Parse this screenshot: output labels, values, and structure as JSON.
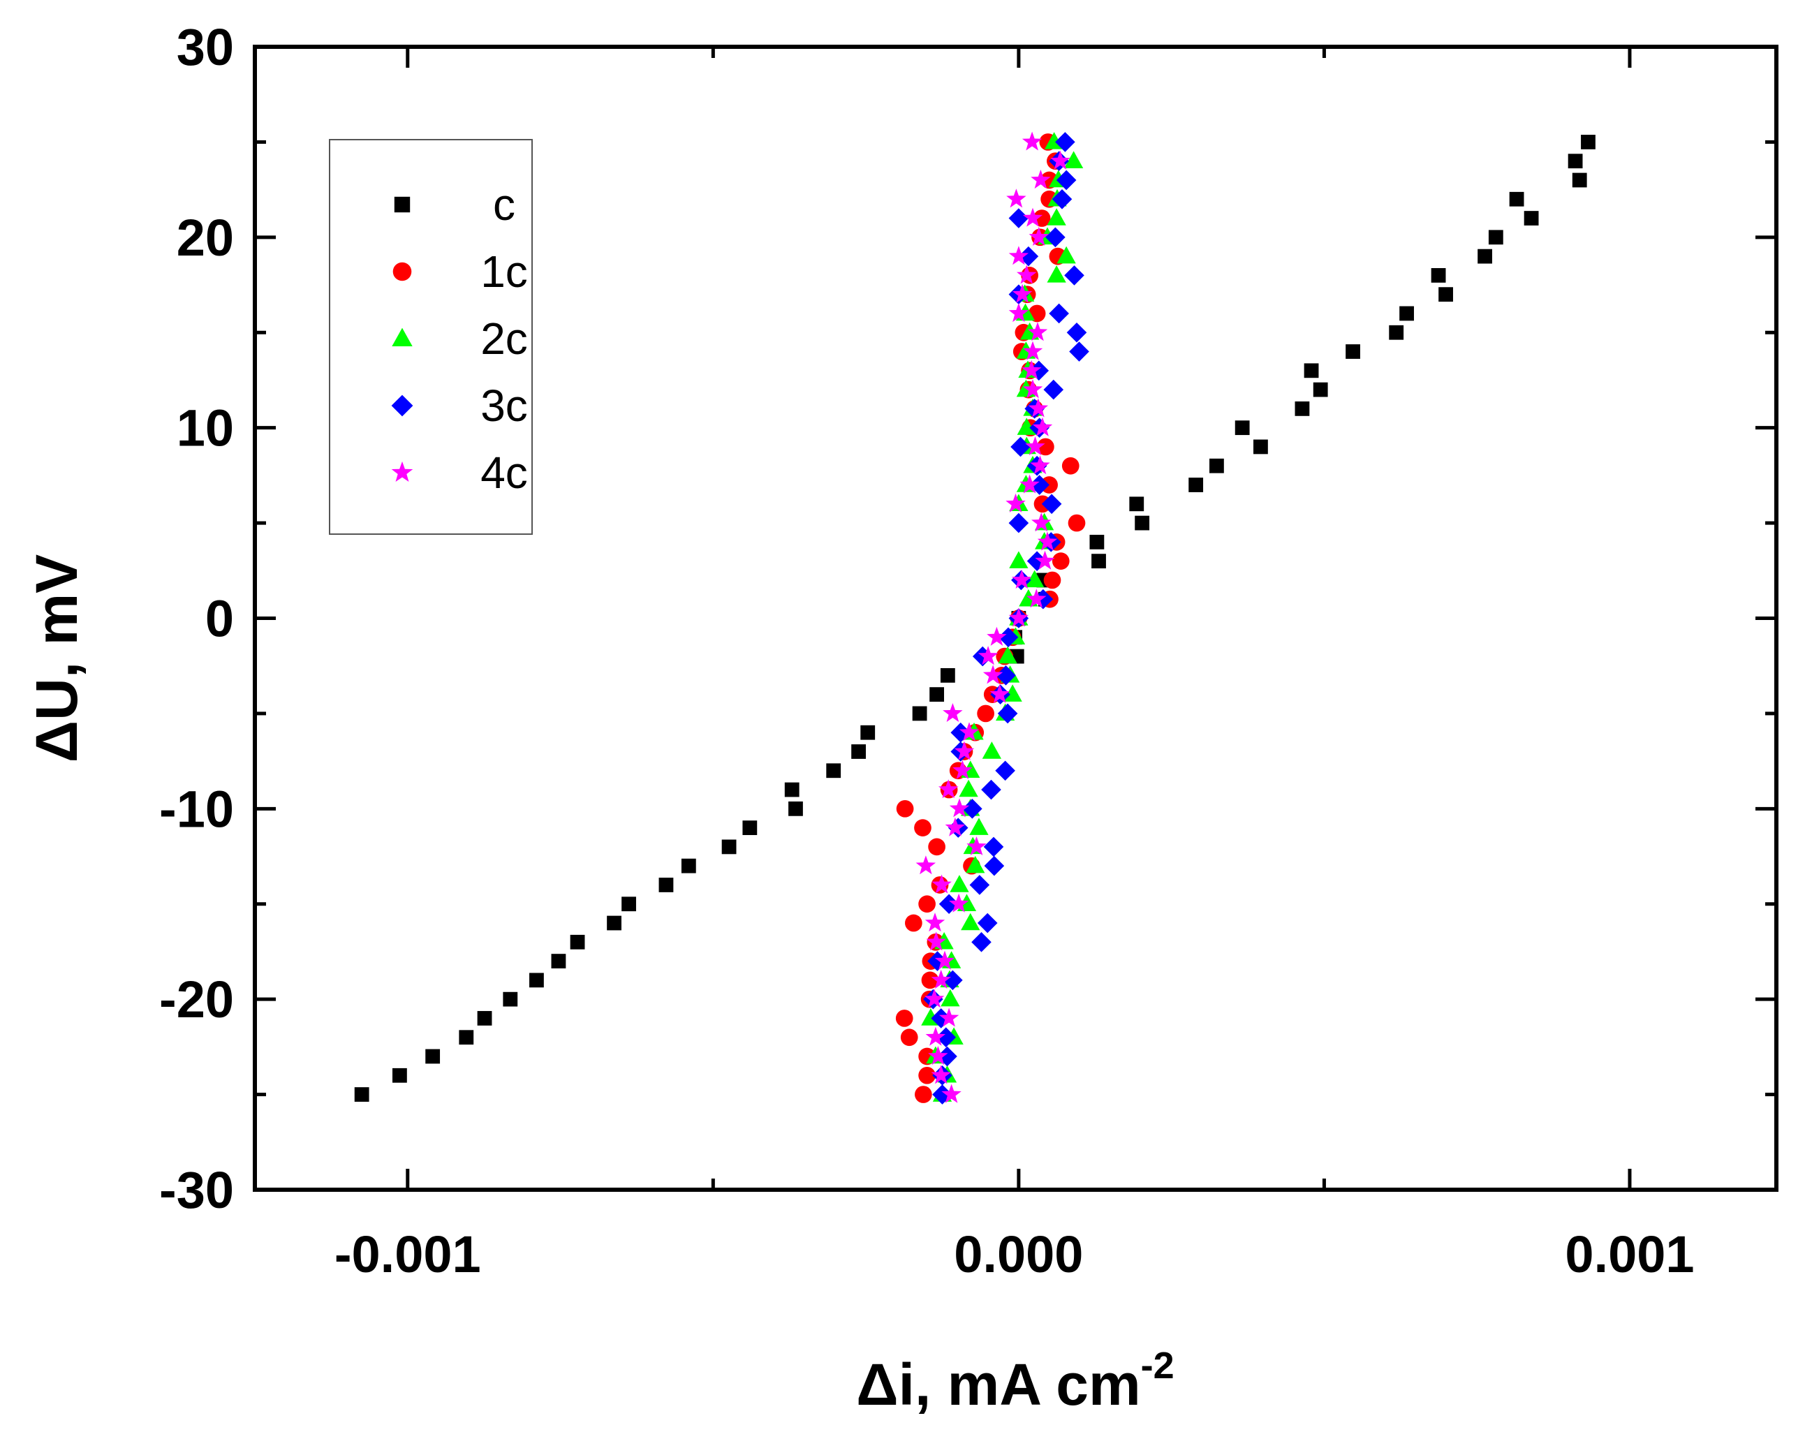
{
  "chart_data": {
    "type": "scatter",
    "title": "",
    "xlabel": "Δi, mA cm",
    "xlabel_sup": "-2",
    "ylabel": "ΔU, mV",
    "xlim": [
      -0.00125,
      0.00124
    ],
    "ylim": [
      -30,
      30
    ],
    "xticks": [
      {
        "value": -0.001,
        "label": "-0.001"
      },
      {
        "value": 0.0,
        "label": "0.000"
      },
      {
        "value": 0.001,
        "label": "0.001"
      }
    ],
    "xminor": [
      -0.0005,
      0.0005
    ],
    "yticks": [
      {
        "value": -30,
        "label": "-30"
      },
      {
        "value": -20,
        "label": "-20"
      },
      {
        "value": -10,
        "label": "-10"
      },
      {
        "value": 0,
        "label": "0"
      },
      {
        "value": 10,
        "label": "10"
      },
      {
        "value": 20,
        "label": "20"
      },
      {
        "value": 30,
        "label": "30"
      }
    ],
    "yminor": [
      -25,
      -15,
      -5,
      5,
      15,
      25
    ],
    "legend_position": "top-left",
    "series": [
      {
        "name": "c",
        "marker": "square",
        "color": "#000000",
        "points": [
          [
            -0.001075,
            -25
          ],
          [
            -0.001013,
            -24
          ],
          [
            -0.000959,
            -23
          ],
          [
            -0.000904,
            -22
          ],
          [
            -0.000874,
            -21
          ],
          [
            -0.000832,
            -20
          ],
          [
            -0.000789,
            -19
          ],
          [
            -0.000753,
            -18
          ],
          [
            -0.000722,
            -17
          ],
          [
            -0.000662,
            -16
          ],
          [
            -0.000638,
            -15
          ],
          [
            -0.000577,
            -14
          ],
          [
            -0.00054,
            -13
          ],
          [
            -0.000474,
            -12
          ],
          [
            -0.00044,
            -11
          ],
          [
            -0.000365,
            -10
          ],
          [
            -0.000371,
            -9
          ],
          [
            -0.000303,
            -8
          ],
          [
            -0.000262,
            -7
          ],
          [
            -0.000247,
            -6
          ],
          [
            -0.000162,
            -5
          ],
          [
            -0.000134,
            -4
          ],
          [
            -0.000116,
            -3
          ],
          [
            -3e-06,
            -2
          ],
          [
            -6e-06,
            -1
          ],
          [
            0.0,
            0
          ],
          [
            4.4e-05,
            1
          ],
          [
            4.1e-05,
            2
          ],
          [
            0.000131,
            3
          ],
          [
            0.000128,
            4
          ],
          [
            0.000202,
            5
          ],
          [
            0.000193,
            6
          ],
          [
            0.00029,
            7
          ],
          [
            0.000324,
            8
          ],
          [
            0.000396,
            9
          ],
          [
            0.000366,
            10
          ],
          [
            0.000464,
            11
          ],
          [
            0.000494,
            12
          ],
          [
            0.000479,
            13
          ],
          [
            0.000547,
            14
          ],
          [
            0.000618,
            15
          ],
          [
            0.000635,
            16
          ],
          [
            0.000699,
            17
          ],
          [
            0.000687,
            18
          ],
          [
            0.000763,
            19
          ],
          [
            0.000781,
            20
          ],
          [
            0.000839,
            21
          ],
          [
            0.000815,
            22
          ],
          [
            0.000918,
            23
          ],
          [
            0.000911,
            24
          ],
          [
            0.000932,
            25
          ]
        ]
      },
      {
        "name": "1c",
        "marker": "circle",
        "color": "#ff0000",
        "points": [
          [
            -0.000156,
            -25
          ],
          [
            -0.00015,
            -24
          ],
          [
            -0.00015,
            -23
          ],
          [
            -0.000179,
            -22
          ],
          [
            -0.000187,
            -21
          ],
          [
            -0.000146,
            -20
          ],
          [
            -0.000145,
            -19
          ],
          [
            -0.000144,
            -18
          ],
          [
            -0.000136,
            -17
          ],
          [
            -0.000172,
            -16
          ],
          [
            -0.00015,
            -15
          ],
          [
            -0.000129,
            -14
          ],
          [
            -7.7e-05,
            -13
          ],
          [
            -0.000134,
            -12
          ],
          [
            -0.000157,
            -11
          ],
          [
            -0.000186,
            -10
          ],
          [
            -0.000114,
            -9
          ],
          [
            -9.9e-05,
            -8
          ],
          [
            -8.9e-05,
            -7
          ],
          [
            -7.1e-05,
            -6
          ],
          [
            -5.4e-05,
            -5
          ],
          [
            -4.3e-05,
            -4
          ],
          [
            -2.8e-05,
            -3
          ],
          [
            -2.3e-05,
            -2
          ],
          [
            -1e-05,
            -1
          ],
          [
            0.0,
            0
          ],
          [
            5.1e-05,
            1
          ],
          [
            5.5e-05,
            2
          ],
          [
            6.9e-05,
            3
          ],
          [
            6.2e-05,
            4
          ],
          [
            9.5e-05,
            5
          ],
          [
            3.9e-05,
            6
          ],
          [
            5e-05,
            7
          ],
          [
            8.5e-05,
            8
          ],
          [
            4.4e-05,
            9
          ],
          [
            1.9e-05,
            10
          ],
          [
            2.6e-05,
            11
          ],
          [
            1.6e-05,
            12
          ],
          [
            1.8e-05,
            13
          ],
          [
            5e-06,
            14
          ],
          [
            8e-06,
            15
          ],
          [
            3e-05,
            16
          ],
          [
            1.4e-05,
            17
          ],
          [
            1.8e-05,
            18
          ],
          [
            6.4e-05,
            19
          ],
          [
            3.5e-05,
            20
          ],
          [
            3.8e-05,
            21
          ],
          [
            5e-05,
            22
          ],
          [
            5e-05,
            23
          ],
          [
            6e-05,
            24
          ],
          [
            4.8e-05,
            25
          ]
        ]
      },
      {
        "name": "2c",
        "marker": "triangle",
        "color": "#00ff00",
        "points": [
          [
            -0.000125,
            -25
          ],
          [
            -0.000117,
            -24
          ],
          [
            -0.000136,
            -23
          ],
          [
            -0.000106,
            -22
          ],
          [
            -0.000144,
            -21
          ],
          [
            -0.000112,
            -20
          ],
          [
            -0.000113,
            -19
          ],
          [
            -0.00011,
            -18
          ],
          [
            -0.000122,
            -17
          ],
          [
            -7.9e-05,
            -16
          ],
          [
            -8.5e-05,
            -15
          ],
          [
            -9.7e-05,
            -14
          ],
          [
            -7.1e-05,
            -13
          ],
          [
            -7.5e-05,
            -12
          ],
          [
            -6.5e-05,
            -11
          ],
          [
            -7.9e-05,
            -10
          ],
          [
            -8.2e-05,
            -9
          ],
          [
            -7.9e-05,
            -8
          ],
          [
            -4.4e-05,
            -7
          ],
          [
            -7.3e-05,
            -6
          ],
          [
            -2.2e-05,
            -5
          ],
          [
            -1e-05,
            -4
          ],
          [
            -1.4e-05,
            -3
          ],
          [
            -1.8e-05,
            -2
          ],
          [
            -5e-06,
            -1
          ],
          [
            0.0,
            0
          ],
          [
            1.6e-05,
            1
          ],
          [
            2.6e-05,
            2
          ],
          [
            0.0,
            3
          ],
          [
            4.2e-05,
            4
          ],
          [
            4.2e-05,
            5
          ],
          [
            0.0,
            6
          ],
          [
            1.2e-05,
            7
          ],
          [
            2.3e-05,
            8
          ],
          [
            1.3e-05,
            9
          ],
          [
            1.3e-05,
            10
          ],
          [
            2.3e-05,
            11
          ],
          [
            1.2e-05,
            12
          ],
          [
            1.5e-05,
            13
          ],
          [
            1.2e-05,
            14
          ],
          [
            1.8e-05,
            15
          ],
          [
            1.1e-05,
            16
          ],
          [
            1e-05,
            17
          ],
          [
            6.2e-05,
            18
          ],
          [
            7.8e-05,
            19
          ],
          [
            4.7e-05,
            20
          ],
          [
            6.2e-05,
            21
          ],
          [
            6.3e-05,
            22
          ],
          [
            6.5e-05,
            23
          ],
          [
            9e-05,
            24
          ],
          [
            5.8e-05,
            25
          ]
        ]
      },
      {
        "name": "3c",
        "marker": "diamond",
        "color": "#0000ff",
        "points": [
          [
            -0.000125,
            -25
          ],
          [
            -0.000125,
            -24
          ],
          [
            -0.000117,
            -23
          ],
          [
            -0.000119,
            -22
          ],
          [
            -0.000127,
            -21
          ],
          [
            -0.00014,
            -20
          ],
          [
            -0.000108,
            -19
          ],
          [
            -0.000133,
            -18
          ],
          [
            -6.1e-05,
            -17
          ],
          [
            -5.1e-05,
            -16
          ],
          [
            -0.000114,
            -15
          ],
          [
            -6.4e-05,
            -14
          ],
          [
            -4e-05,
            -13
          ],
          [
            -4.1e-05,
            -12
          ],
          [
            -9.9e-05,
            -11
          ],
          [
            -7.6e-05,
            -10
          ],
          [
            -4.5e-05,
            -9
          ],
          [
            -2.2e-05,
            -8
          ],
          [
            -9.5e-05,
            -7
          ],
          [
            -9.5e-05,
            -6
          ],
          [
            -1.8e-05,
            -5
          ],
          [
            -3e-05,
            -4
          ],
          [
            -2.1e-05,
            -3
          ],
          [
            -5.9e-05,
            -2
          ],
          [
            -1.7e-05,
            -1
          ],
          [
            0.0,
            0
          ],
          [
            4e-05,
            1
          ],
          [
            4e-06,
            2
          ],
          [
            3e-05,
            3
          ],
          [
            5.3e-05,
            4
          ],
          [
            0.0,
            5
          ],
          [
            5.4e-05,
            6
          ],
          [
            3.4e-05,
            7
          ],
          [
            3e-05,
            8
          ],
          [
            3e-06,
            9
          ],
          [
            3.4e-05,
            10
          ],
          [
            2.6e-05,
            11
          ],
          [
            5.7e-05,
            12
          ],
          [
            3.3e-05,
            13
          ],
          [
            9.9e-05,
            14
          ],
          [
            9.5e-05,
            15
          ],
          [
            6.6e-05,
            16
          ],
          [
            0.0,
            17
          ],
          [
            9.1e-05,
            18
          ],
          [
            1.6e-05,
            19
          ],
          [
            6e-05,
            20
          ],
          [
            0.0,
            21
          ],
          [
            7.1e-05,
            22
          ],
          [
            7.8e-05,
            23
          ],
          [
            6.6e-05,
            24
          ],
          [
            7.6e-05,
            25
          ]
        ]
      },
      {
        "name": "4c",
        "marker": "star",
        "color": "#ff00ff",
        "points": [
          [
            -0.00011,
            -25
          ],
          [
            -0.000127,
            -24
          ],
          [
            -0.000132,
            -23
          ],
          [
            -0.000136,
            -22
          ],
          [
            -0.000114,
            -21
          ],
          [
            -0.000138,
            -20
          ],
          [
            -0.000127,
            -19
          ],
          [
            -0.000121,
            -18
          ],
          [
            -0.000135,
            -17
          ],
          [
            -0.000137,
            -16
          ],
          [
            -9.8e-05,
            -15
          ],
          [
            -0.000126,
            -14
          ],
          [
            -0.000152,
            -13
          ],
          [
            -6.9e-05,
            -12
          ],
          [
            -0.000104,
            -11
          ],
          [
            -9.7e-05,
            -10
          ],
          [
            -0.000115,
            -9
          ],
          [
            -9.2e-05,
            -8
          ],
          [
            -8.9e-05,
            -7
          ],
          [
            -8.1e-05,
            -6
          ],
          [
            -0.000108,
            -5
          ],
          [
            -3.1e-05,
            -4
          ],
          [
            -4.2e-05,
            -3
          ],
          [
            -5e-05,
            -2
          ],
          [
            -3.6e-05,
            -1
          ],
          [
            0.0,
            0
          ],
          [
            2.9e-05,
            1
          ],
          [
            5e-06,
            2
          ],
          [
            4.3e-05,
            3
          ],
          [
            4.7e-05,
            4
          ],
          [
            3.7e-05,
            5
          ],
          [
            -5e-06,
            6
          ],
          [
            1.8e-05,
            7
          ],
          [
            3.5e-05,
            8
          ],
          [
            2.7e-05,
            9
          ],
          [
            3.9e-05,
            10
          ],
          [
            3.2e-05,
            11
          ],
          [
            2.3e-05,
            12
          ],
          [
            2.1e-05,
            13
          ],
          [
            2.3e-05,
            14
          ],
          [
            3.1e-05,
            15
          ],
          [
            0.0,
            16
          ],
          [
            6e-06,
            17
          ],
          [
            1.3e-05,
            18
          ],
          [
            0.0,
            19
          ],
          [
            3.3e-05,
            20
          ],
          [
            2.3e-05,
            21
          ],
          [
            -4e-06,
            22
          ],
          [
            3.6e-05,
            23
          ],
          [
            6.8e-05,
            24
          ],
          [
            2.2e-05,
            25
          ]
        ]
      }
    ]
  }
}
